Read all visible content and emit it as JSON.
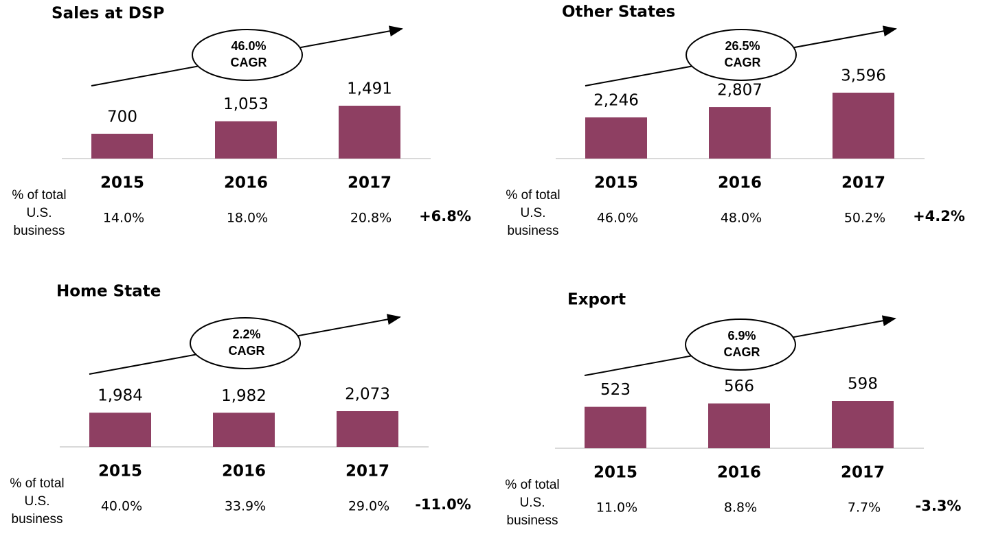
{
  "chart_data": [
    {
      "type": "bar",
      "title": "Sales at DSP",
      "categories": [
        "2015",
        "2016",
        "2017"
      ],
      "values": [
        700,
        1053,
        1491
      ],
      "value_labels": [
        "700",
        "1,053",
        "1,491"
      ],
      "color": "#8e3f62",
      "cagr": "46.0%",
      "cagr_text": "CAGR",
      "share_label": [
        "% of total",
        "U.S.",
        "business"
      ],
      "shares": [
        "14.0%",
        "18.0%",
        "20.8%"
      ],
      "change": "+6.8%"
    },
    {
      "type": "bar",
      "title": "Other States",
      "categories": [
        "2015",
        "2016",
        "2017"
      ],
      "values": [
        2246,
        2807,
        3596
      ],
      "value_labels": [
        "2,246",
        "2,807",
        "3,596"
      ],
      "color": "#8e3f62",
      "cagr": "26.5%",
      "cagr_text": "CAGR",
      "share_label": [
        "% of total",
        "U.S.",
        "business"
      ],
      "shares": [
        "46.0%",
        "48.0%",
        "50.2%"
      ],
      "change": "+4.2%"
    },
    {
      "type": "bar",
      "title": "Home State",
      "categories": [
        "2015",
        "2016",
        "2017"
      ],
      "values": [
        1984,
        1982,
        2073
      ],
      "value_labels": [
        "1,984",
        "1,982",
        "2,073"
      ],
      "color": "#8e3f62",
      "cagr": "2.2%",
      "cagr_text": "CAGR",
      "share_label": [
        "% of total",
        "U.S.",
        "business"
      ],
      "shares": [
        "40.0%",
        "33.9%",
        "29.0%"
      ],
      "change": "-11.0%"
    },
    {
      "type": "bar",
      "title": "Export",
      "categories": [
        "2015",
        "2016",
        "2017"
      ],
      "values": [
        523,
        566,
        598
      ],
      "value_labels": [
        "523",
        "566",
        "598"
      ],
      "color": "#8e3f62",
      "cagr": "6.9%",
      "cagr_text": "CAGR",
      "share_label": [
        "% of total",
        "U.S.",
        "business"
      ],
      "shares": [
        "11.0%",
        "8.8%",
        "7.7%"
      ],
      "change": "-3.3%"
    }
  ]
}
